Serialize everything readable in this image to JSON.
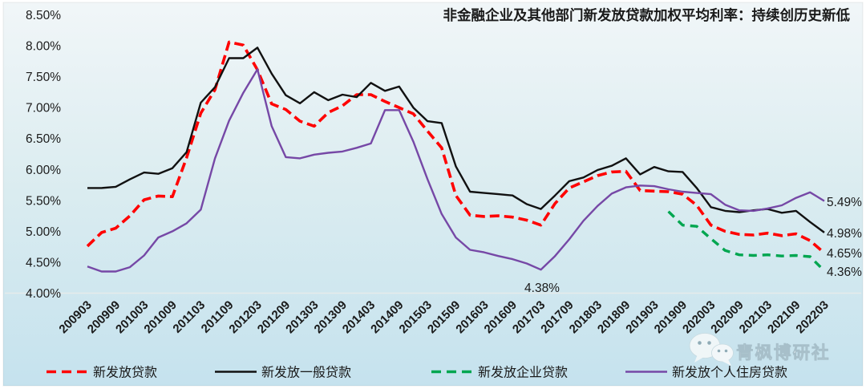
{
  "chart_data": {
    "type": "line",
    "title": "非金融企业及其他部门新发放贷款加权平均利率：持续创历史新低",
    "xlabel": "",
    "ylabel": "",
    "y_axis": {
      "min": 4.0,
      "max": 8.5,
      "step": 0.5,
      "tick_format": "percent",
      "tick_labels": [
        "8.50%",
        "8.00%",
        "7.50%",
        "7.00%",
        "6.50%",
        "6.00%",
        "5.50%",
        "5.00%",
        "4.50%",
        "4.00%"
      ]
    },
    "grid": "baseline-only",
    "legend_position": "bottom",
    "x": [
      "200903",
      "200906",
      "200909",
      "200912",
      "201003",
      "201006",
      "201009",
      "201012",
      "201103",
      "201106",
      "201109",
      "201112",
      "201203",
      "201206",
      "201209",
      "201212",
      "201303",
      "201306",
      "201309",
      "201312",
      "201403",
      "201406",
      "201409",
      "201412",
      "201503",
      "201506",
      "201509",
      "201512",
      "201603",
      "201606",
      "201609",
      "201612",
      "201703",
      "201706",
      "201709",
      "201712",
      "201803",
      "201806",
      "201809",
      "201812",
      "201903",
      "201906",
      "201909",
      "201912",
      "202003",
      "202006",
      "202009",
      "202012",
      "202103",
      "202106",
      "202109",
      "202112",
      "202203"
    ],
    "x_tick_labels": [
      "200903",
      "200909",
      "201003",
      "201009",
      "201103",
      "201109",
      "201203",
      "201209",
      "201303",
      "201309",
      "201403",
      "201409",
      "201503",
      "201509",
      "201603",
      "201609",
      "201703",
      "201709",
      "201803",
      "201809",
      "201903",
      "201909",
      "202003",
      "202009",
      "202103",
      "202109",
      "202203"
    ],
    "series": [
      {
        "name": "新发放贷款",
        "color": "#FF0000",
        "style": "dashed",
        "width": 3.6,
        "start_index": 0,
        "values": [
          4.76,
          4.98,
          5.05,
          5.25,
          5.51,
          5.57,
          5.56,
          6.19,
          6.91,
          7.29,
          8.06,
          8.01,
          7.61,
          7.06,
          6.97,
          6.78,
          6.7,
          6.92,
          7.03,
          7.21,
          7.21,
          7.1,
          7.0,
          6.9,
          6.62,
          6.35,
          5.58,
          5.26,
          5.24,
          5.25,
          5.23,
          5.18,
          5.1,
          5.45,
          5.7,
          5.8,
          5.9,
          5.96,
          5.97,
          5.66,
          5.65,
          5.64,
          5.6,
          5.42,
          5.1,
          5.0,
          4.95,
          4.94,
          4.97,
          4.93,
          4.96,
          4.85,
          4.65
        ]
      },
      {
        "name": "新发放一般贷款",
        "color": "#111111",
        "style": "solid",
        "width": 2.4,
        "start_index": 0,
        "values": [
          5.7,
          5.7,
          5.72,
          5.84,
          5.95,
          5.93,
          6.02,
          6.28,
          7.08,
          7.33,
          7.8,
          7.8,
          7.97,
          7.55,
          7.2,
          7.07,
          7.25,
          7.12,
          7.21,
          7.17,
          7.4,
          7.27,
          7.34,
          7.0,
          6.78,
          6.75,
          6.05,
          5.64,
          5.62,
          5.6,
          5.58,
          5.44,
          5.36,
          5.58,
          5.81,
          5.87,
          5.99,
          6.06,
          6.18,
          5.92,
          6.04,
          5.97,
          5.96,
          5.7,
          5.39,
          5.33,
          5.31,
          5.34,
          5.36,
          5.3,
          5.33,
          5.15,
          4.98
        ]
      },
      {
        "name": "新发放企业贷款",
        "color": "#00A650",
        "style": "dashed",
        "width": 3.4,
        "start_index": 41,
        "values": [
          5.32,
          5.1,
          5.08,
          4.88,
          4.69,
          4.62,
          4.61,
          4.62,
          4.6,
          4.61,
          4.59,
          4.36
        ]
      },
      {
        "name": "新发放个人住房贷款",
        "color": "#7648A6",
        "style": "solid",
        "width": 2.4,
        "start_index": 0,
        "values": [
          4.43,
          4.35,
          4.35,
          4.42,
          4.61,
          4.9,
          5.0,
          5.13,
          5.35,
          6.18,
          6.79,
          7.24,
          7.62,
          6.7,
          6.2,
          6.18,
          6.24,
          6.27,
          6.29,
          6.35,
          6.42,
          6.96,
          6.96,
          6.45,
          5.84,
          5.28,
          4.9,
          4.7,
          4.66,
          4.6,
          4.55,
          4.48,
          4.38,
          4.6,
          4.87,
          5.17,
          5.41,
          5.61,
          5.71,
          5.74,
          5.73,
          5.68,
          5.64,
          5.62,
          5.6,
          5.43,
          5.34,
          5.33,
          5.37,
          5.42,
          5.54,
          5.63,
          5.49
        ]
      }
    ],
    "annotations": [
      {
        "text": "4.38%",
        "target": "新发放个人住房贷款",
        "position": "below-2017Q1-trough"
      },
      {
        "text": "5.49%",
        "target": "新发放个人住房贷款",
        "position": "line-end"
      },
      {
        "text": "4.98%",
        "target": "新发放一般贷款",
        "position": "line-end"
      },
      {
        "text": "4.65%",
        "target": "新发放贷款",
        "position": "line-end"
      },
      {
        "text": "4.36%",
        "target": "新发放企业贷款",
        "position": "line-end"
      }
    ]
  },
  "style_colors": {
    "background_top": "#F1F6F8",
    "background_mid": "#DAECF0",
    "background_bottom": "#C5E2EE",
    "frame": "#FFFFFF",
    "baseline": "#E6EBEB",
    "text": "#1A1A1A"
  },
  "watermark": {
    "icon": "wechat-icon",
    "text": "青枫博研社"
  }
}
